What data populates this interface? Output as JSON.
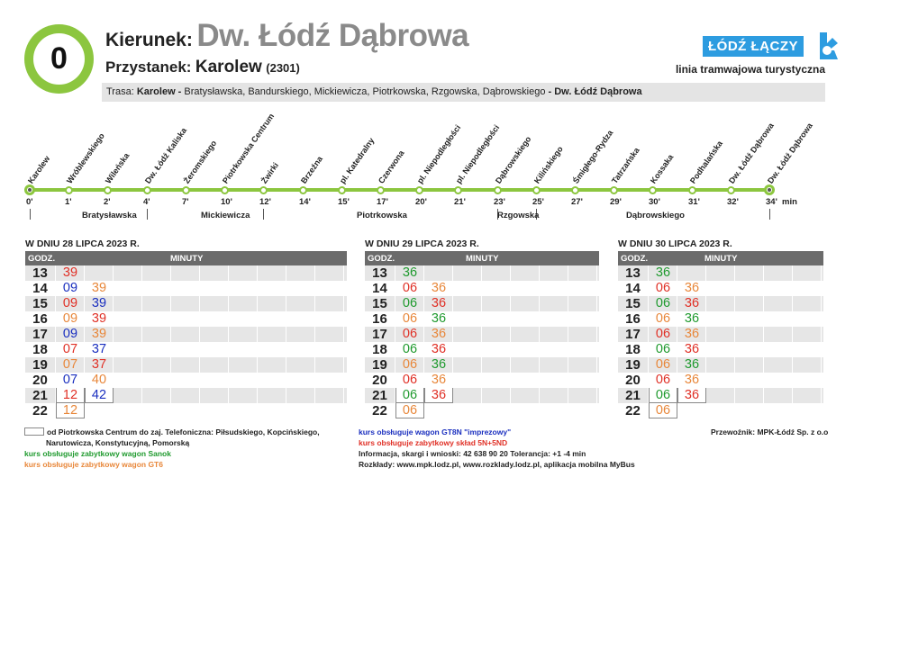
{
  "header": {
    "route_number": "0",
    "direction_label": "Kierunek:",
    "direction_value": "Dw. Łódź Dąbrowa",
    "stop_label": "Przystanek:",
    "stop_value": "Karolew",
    "stop_code": "(2301)",
    "logo_text": "ŁÓDŹ ŁĄCZY",
    "subtitle": "linia tramwajowa turystyczna",
    "trasa_prefix": "Trasa:",
    "trasa_start": "Karolew -",
    "trasa_streets": "Bratysławska,  Bandurskiego,  Mickiewicza,  Piotrkowska,  Rzgowska,  Dąbrowskiego",
    "trasa_end": "- Dw. Łódź Dąbrowa"
  },
  "diagram": {
    "stops": [
      "Karolew",
      "Wróblewskiego",
      "Wileńska",
      "Dw. Łódź Kaliska",
      "Żeromskiego",
      "Piotrkowska Centrum",
      "Żwirki",
      "Brzeźna",
      "pl. Katedralny",
      "Czerwona",
      "pl. Niepodległości",
      "pl. Niepodległości",
      "Dąbrowskiego",
      "Kilińskiego",
      "Śmigłego-Rydza",
      "Tatrzańska",
      "Kossaka",
      "Podhalańska",
      "Dw. Łódź Dąbrowa",
      "Dw. Łódź Dąbrowa"
    ],
    "times": [
      "0'",
      "1'",
      "2'",
      "4'",
      "7'",
      "10'",
      "12'",
      "14'",
      "15'",
      "17'",
      "20'",
      "21'",
      "23'",
      "25'",
      "27'",
      "29'",
      "30'",
      "31'",
      "32'",
      "34'"
    ],
    "min_label": "min",
    "streets": [
      "Bratysławska",
      "Mickiewicza",
      "Piotrkowska",
      "Rzgowska",
      "Dąbrowskiego"
    ]
  },
  "timetables": [
    {
      "date": "W DNIU 28 LIPCA 2023 R.",
      "hour_header": "GODZ.",
      "minutes_header": "MINUTY",
      "rows": [
        {
          "hour": "13",
          "mins": [
            {
              "v": "39",
              "c": "red"
            }
          ]
        },
        {
          "hour": "14",
          "mins": [
            {
              "v": "09",
              "c": "blue"
            },
            {
              "v": "39",
              "c": "orange"
            }
          ]
        },
        {
          "hour": "15",
          "mins": [
            {
              "v": "09",
              "c": "red"
            },
            {
              "v": "39",
              "c": "blue"
            }
          ]
        },
        {
          "hour": "16",
          "mins": [
            {
              "v": "09",
              "c": "orange"
            },
            {
              "v": "39",
              "c": "red"
            }
          ]
        },
        {
          "hour": "17",
          "mins": [
            {
              "v": "09",
              "c": "blue"
            },
            {
              "v": "39",
              "c": "orange"
            }
          ]
        },
        {
          "hour": "18",
          "mins": [
            {
              "v": "07",
              "c": "red"
            },
            {
              "v": "37",
              "c": "blue"
            }
          ]
        },
        {
          "hour": "19",
          "mins": [
            {
              "v": "07",
              "c": "orange"
            },
            {
              "v": "37",
              "c": "red"
            }
          ]
        },
        {
          "hour": "20",
          "mins": [
            {
              "v": "07",
              "c": "blue"
            },
            {
              "v": "40",
              "c": "orange"
            }
          ]
        },
        {
          "hour": "21",
          "mins": [
            {
              "v": "12",
              "c": "red",
              "boxed": true
            },
            {
              "v": "42",
              "c": "blue",
              "boxed": true
            }
          ]
        },
        {
          "hour": "22",
          "mins": [
            {
              "v": "12",
              "c": "orange",
              "boxed": true
            }
          ]
        }
      ]
    },
    {
      "date": "W DNIU 29 LIPCA 2023 R.",
      "hour_header": "GODZ.",
      "minutes_header": "MINUTY",
      "rows": [
        {
          "hour": "13",
          "mins": [
            {
              "v": "36",
              "c": "green"
            }
          ]
        },
        {
          "hour": "14",
          "mins": [
            {
              "v": "06",
              "c": "red"
            },
            {
              "v": "36",
              "c": "orange"
            }
          ]
        },
        {
          "hour": "15",
          "mins": [
            {
              "v": "06",
              "c": "green"
            },
            {
              "v": "36",
              "c": "red"
            }
          ]
        },
        {
          "hour": "16",
          "mins": [
            {
              "v": "06",
              "c": "orange"
            },
            {
              "v": "36",
              "c": "green"
            }
          ]
        },
        {
          "hour": "17",
          "mins": [
            {
              "v": "06",
              "c": "red"
            },
            {
              "v": "36",
              "c": "orange"
            }
          ]
        },
        {
          "hour": "18",
          "mins": [
            {
              "v": "06",
              "c": "green"
            },
            {
              "v": "36",
              "c": "red"
            }
          ]
        },
        {
          "hour": "19",
          "mins": [
            {
              "v": "06",
              "c": "orange"
            },
            {
              "v": "36",
              "c": "green"
            }
          ]
        },
        {
          "hour": "20",
          "mins": [
            {
              "v": "06",
              "c": "red"
            },
            {
              "v": "36",
              "c": "orange"
            }
          ]
        },
        {
          "hour": "21",
          "mins": [
            {
              "v": "06",
              "c": "green",
              "boxed": true
            },
            {
              "v": "36",
              "c": "red",
              "boxed": true
            }
          ]
        },
        {
          "hour": "22",
          "mins": [
            {
              "v": "06",
              "c": "orange",
              "boxed": true
            }
          ]
        }
      ]
    },
    {
      "date": "W DNIU 30 LIPCA 2023 R.",
      "hour_header": "GODZ.",
      "minutes_header": "MINUTY",
      "rows": [
        {
          "hour": "13",
          "mins": [
            {
              "v": "36",
              "c": "green"
            }
          ]
        },
        {
          "hour": "14",
          "mins": [
            {
              "v": "06",
              "c": "red"
            },
            {
              "v": "36",
              "c": "orange"
            }
          ]
        },
        {
          "hour": "15",
          "mins": [
            {
              "v": "06",
              "c": "green"
            },
            {
              "v": "36",
              "c": "red"
            }
          ]
        },
        {
          "hour": "16",
          "mins": [
            {
              "v": "06",
              "c": "orange"
            },
            {
              "v": "36",
              "c": "green"
            }
          ]
        },
        {
          "hour": "17",
          "mins": [
            {
              "v": "06",
              "c": "red"
            },
            {
              "v": "36",
              "c": "orange"
            }
          ]
        },
        {
          "hour": "18",
          "mins": [
            {
              "v": "06",
              "c": "green"
            },
            {
              "v": "36",
              "c": "red"
            }
          ]
        },
        {
          "hour": "19",
          "mins": [
            {
              "v": "06",
              "c": "orange"
            },
            {
              "v": "36",
              "c": "green"
            }
          ]
        },
        {
          "hour": "20",
          "mins": [
            {
              "v": "06",
              "c": "red"
            },
            {
              "v": "36",
              "c": "orange"
            }
          ]
        },
        {
          "hour": "21",
          "mins": [
            {
              "v": "06",
              "c": "green",
              "boxed": true
            },
            {
              "v": "36",
              "c": "red",
              "boxed": true
            }
          ]
        },
        {
          "hour": "22",
          "mins": [
            {
              "v": "06",
              "c": "orange",
              "boxed": true
            }
          ]
        }
      ]
    }
  ],
  "legend": {
    "boxed_line1": "od Piotrkowska Centrum do zaj. Telefoniczna: Piłsudskiego, Kopcińskiego,",
    "boxed_line2": "Narutowicza, Konstytucyjną, Pomorską",
    "sanok": "kurs obsługuje zabytkowy wagon Sanok",
    "gt6": "kurs obsługuje zabytkowy wagon GT6",
    "gt8n": "kurs obsługuje wagon GT8N \"imprezowy\"",
    "skład": "kurs obsługuje zabytkowy skład 5N+5ND",
    "info": "Informacja, skargi i wnioski: 42 638 90 20 Tolerancja: +1 -4 min",
    "rozklady": "Rozkłady: www.mpk.lodz.pl, www.rozklady.lodz.pl, aplikacja mobilna MyBus",
    "carrier": "Przewoźnik: MPK-Łódź Sp. z o.o"
  },
  "colors": {
    "accent_green": "#8cc63f",
    "red": "#e03026",
    "blue": "#1a2fbf",
    "orange": "#e8873a",
    "green": "#1f9a2e",
    "logo_blue": "#2d9ce0"
  }
}
